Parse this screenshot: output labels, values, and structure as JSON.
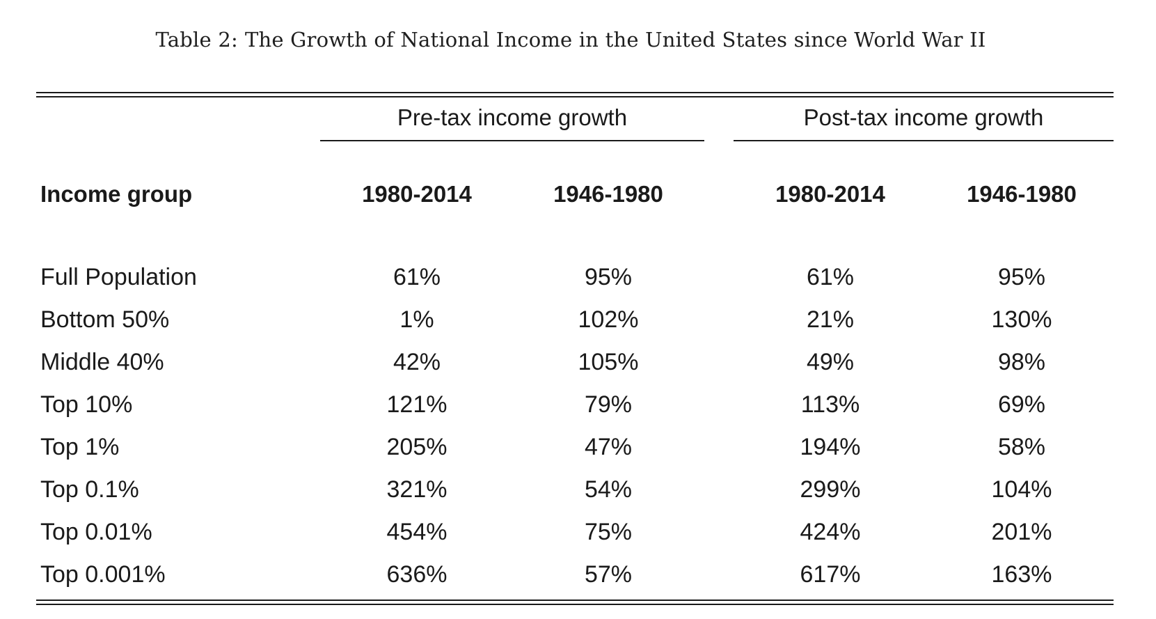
{
  "caption": {
    "label": "Table 2:",
    "text": "The Growth of National Income in the United States since World War II"
  },
  "groups": {
    "pre": "Pre-tax income growth",
    "post": "Post-tax income growth"
  },
  "columns": {
    "group": "Income group",
    "pre_1980_2014": "1980-2014",
    "pre_1946_1980": "1946-1980",
    "post_1980_2014": "1980-2014",
    "post_1946_1980": "1946-1980"
  },
  "rows": [
    {
      "group": "Full Population",
      "pre_1980_2014": "61%",
      "pre_1946_1980": "95%",
      "post_1980_2014": "61%",
      "post_1946_1980": "95%"
    },
    {
      "group": "Bottom 50%",
      "pre_1980_2014": "1%",
      "pre_1946_1980": "102%",
      "post_1980_2014": "21%",
      "post_1946_1980": "130%"
    },
    {
      "group": "Middle 40%",
      "pre_1980_2014": "42%",
      "pre_1946_1980": "105%",
      "post_1980_2014": "49%",
      "post_1946_1980": "98%"
    },
    {
      "group": "Top 10%",
      "pre_1980_2014": "121%",
      "pre_1946_1980": "79%",
      "post_1980_2014": "113%",
      "post_1946_1980": "69%"
    },
    {
      "group": "Top 1%",
      "pre_1980_2014": "205%",
      "pre_1946_1980": "47%",
      "post_1980_2014": "194%",
      "post_1946_1980": "58%"
    },
    {
      "group": "Top 0.1%",
      "pre_1980_2014": "321%",
      "pre_1946_1980": "54%",
      "post_1980_2014": "299%",
      "post_1946_1980": "104%"
    },
    {
      "group": "Top 0.01%",
      "pre_1980_2014": "454%",
      "pre_1946_1980": "75%",
      "post_1980_2014": "424%",
      "post_1946_1980": "201%"
    },
    {
      "group": "Top 0.001%",
      "pre_1980_2014": "636%",
      "pre_1946_1980": "57%",
      "post_1980_2014": "617%",
      "post_1946_1980": "163%"
    }
  ]
}
